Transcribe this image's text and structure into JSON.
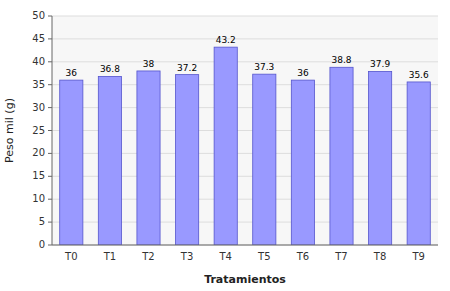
{
  "chart_data": {
    "type": "bar",
    "categories": [
      "T0",
      "T1",
      "T2",
      "T3",
      "T4",
      "T5",
      "T6",
      "T7",
      "T8",
      "T9"
    ],
    "values": [
      36,
      36.8,
      38,
      37.2,
      43.2,
      37.3,
      36,
      38.8,
      37.9,
      35.6
    ],
    "color": "#9999ff",
    "xlabel": "Tratamientos",
    "ylabel": "Peso mil (g)",
    "ylim": [
      0,
      50
    ],
    "yticks": [
      0,
      5,
      10,
      15,
      20,
      25,
      30,
      35,
      40,
      45,
      50
    ],
    "grid": true,
    "data_labels": true
  }
}
